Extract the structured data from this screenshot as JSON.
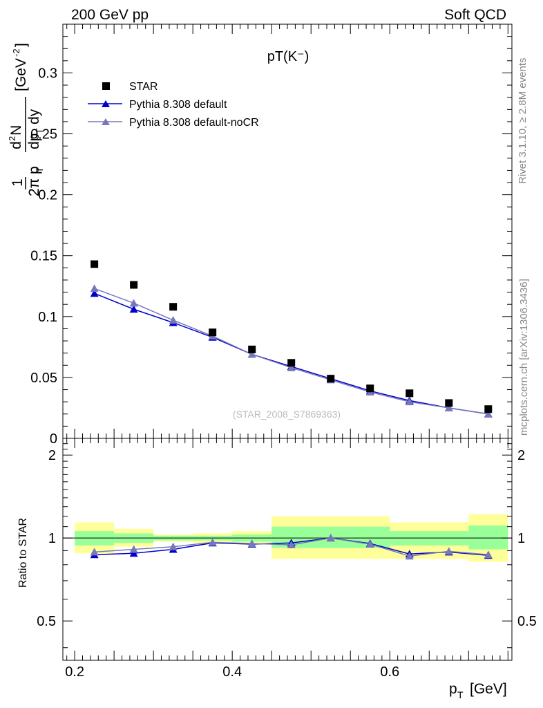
{
  "header": {
    "left": "200 GeV pp",
    "right": "Soft QCD"
  },
  "side_labels": {
    "top": "Rivet 3.1.10, ≥ 2.8M events",
    "bottom": "mcplots.cern.ch [arXiv:1306.3436]"
  },
  "watermark": "(STAR_2008_S7869363)",
  "colors": {
    "data": "#000000",
    "mc1": "#0000cc",
    "mc2": "#7777bb",
    "band_outer": "#ffff99",
    "band_inner": "#99ff99"
  },
  "chart_data": [
    {
      "type": "scatter",
      "title": "pT(K⁻)",
      "ylabel": "1/(2π p_T) d²N/(dp_T dy) [GeV⁻²]",
      "xlabel": "",
      "xlim": [
        0.185,
        0.755
      ],
      "ylim": [
        0,
        0.34
      ],
      "yticks": [
        0,
        0.05,
        0.1,
        0.15,
        0.2,
        0.25,
        0.3
      ],
      "ytick_labels": [
        "0",
        "0.05",
        "0.1",
        "0.15",
        "0.2",
        "0.25",
        "0.3"
      ],
      "legend_position": "top-left",
      "x": [
        0.225,
        0.275,
        0.325,
        0.375,
        0.425,
        0.475,
        0.525,
        0.575,
        0.625,
        0.675,
        0.725
      ],
      "series": [
        {
          "name": "STAR",
          "marker": "square",
          "values": [
            0.143,
            0.126,
            0.108,
            0.087,
            0.073,
            0.062,
            0.049,
            0.041,
            0.037,
            0.029,
            0.024
          ]
        },
        {
          "name": "Pythia 8.308 default",
          "marker": "triangle",
          "values": [
            0.119,
            0.106,
            0.095,
            0.083,
            0.069,
            0.059,
            0.049,
            0.039,
            0.031,
            0.025,
            0.02
          ]
        },
        {
          "name": "Pythia 8.308 default-noCR",
          "marker": "triangle",
          "values": [
            0.123,
            0.111,
            0.097,
            0.084,
            0.069,
            0.058,
            0.048,
            0.038,
            0.03,
            0.025,
            0.02
          ]
        }
      ]
    },
    {
      "type": "line",
      "title": "",
      "ylabel": "Ratio to STAR",
      "xlabel": "p_T [GeV]",
      "xlim": [
        0.185,
        0.755
      ],
      "ylim": [
        0.36,
        2.3
      ],
      "yticks": [
        0.5,
        1,
        2
      ],
      "ytick_labels": [
        "0.5",
        "1",
        "2"
      ],
      "xticks": [
        0.2,
        0.4,
        0.6
      ],
      "xtick_labels": [
        "0.2",
        "0.4",
        "0.6"
      ],
      "x": [
        0.225,
        0.275,
        0.325,
        0.375,
        0.425,
        0.475,
        0.525,
        0.575,
        0.625,
        0.675,
        0.725
      ],
      "bands": [
        {
          "x0": 0.2,
          "x1": 0.25,
          "outer": [
            0.88,
            1.14
          ],
          "inner": [
            0.94,
            1.06
          ]
        },
        {
          "x0": 0.25,
          "x1": 0.3,
          "outer": [
            0.93,
            1.08
          ],
          "inner": [
            0.96,
            1.04
          ]
        },
        {
          "x0": 0.3,
          "x1": 0.35,
          "outer": [
            0.97,
            1.03
          ],
          "inner": [
            0.98,
            1.02
          ]
        },
        {
          "x0": 0.35,
          "x1": 0.4,
          "outer": [
            0.96,
            1.04
          ],
          "inner": [
            0.98,
            1.02
          ]
        },
        {
          "x0": 0.4,
          "x1": 0.45,
          "outer": [
            0.95,
            1.06
          ],
          "inner": [
            0.97,
            1.03
          ]
        },
        {
          "x0": 0.45,
          "x1": 0.6,
          "outer": [
            0.84,
            1.2
          ],
          "inner": [
            0.92,
            1.1
          ]
        },
        {
          "x0": 0.6,
          "x1": 0.7,
          "outer": [
            0.84,
            1.14
          ],
          "inner": [
            0.94,
            1.06
          ]
        },
        {
          "x0": 0.7,
          "x1": 0.75,
          "outer": [
            0.82,
            1.22
          ],
          "inner": [
            0.91,
            1.11
          ]
        }
      ],
      "series": [
        {
          "name": "Pythia 8.308 default",
          "values": [
            0.87,
            0.88,
            0.91,
            0.96,
            0.95,
            0.96,
            1.0,
            0.955,
            0.875,
            0.89,
            0.865
          ]
        },
        {
          "name": "Pythia 8.308 default-noCR",
          "values": [
            0.89,
            0.91,
            0.93,
            0.965,
            0.955,
            0.945,
            1.0,
            0.95,
            0.86,
            0.895,
            0.87
          ]
        }
      ]
    }
  ]
}
